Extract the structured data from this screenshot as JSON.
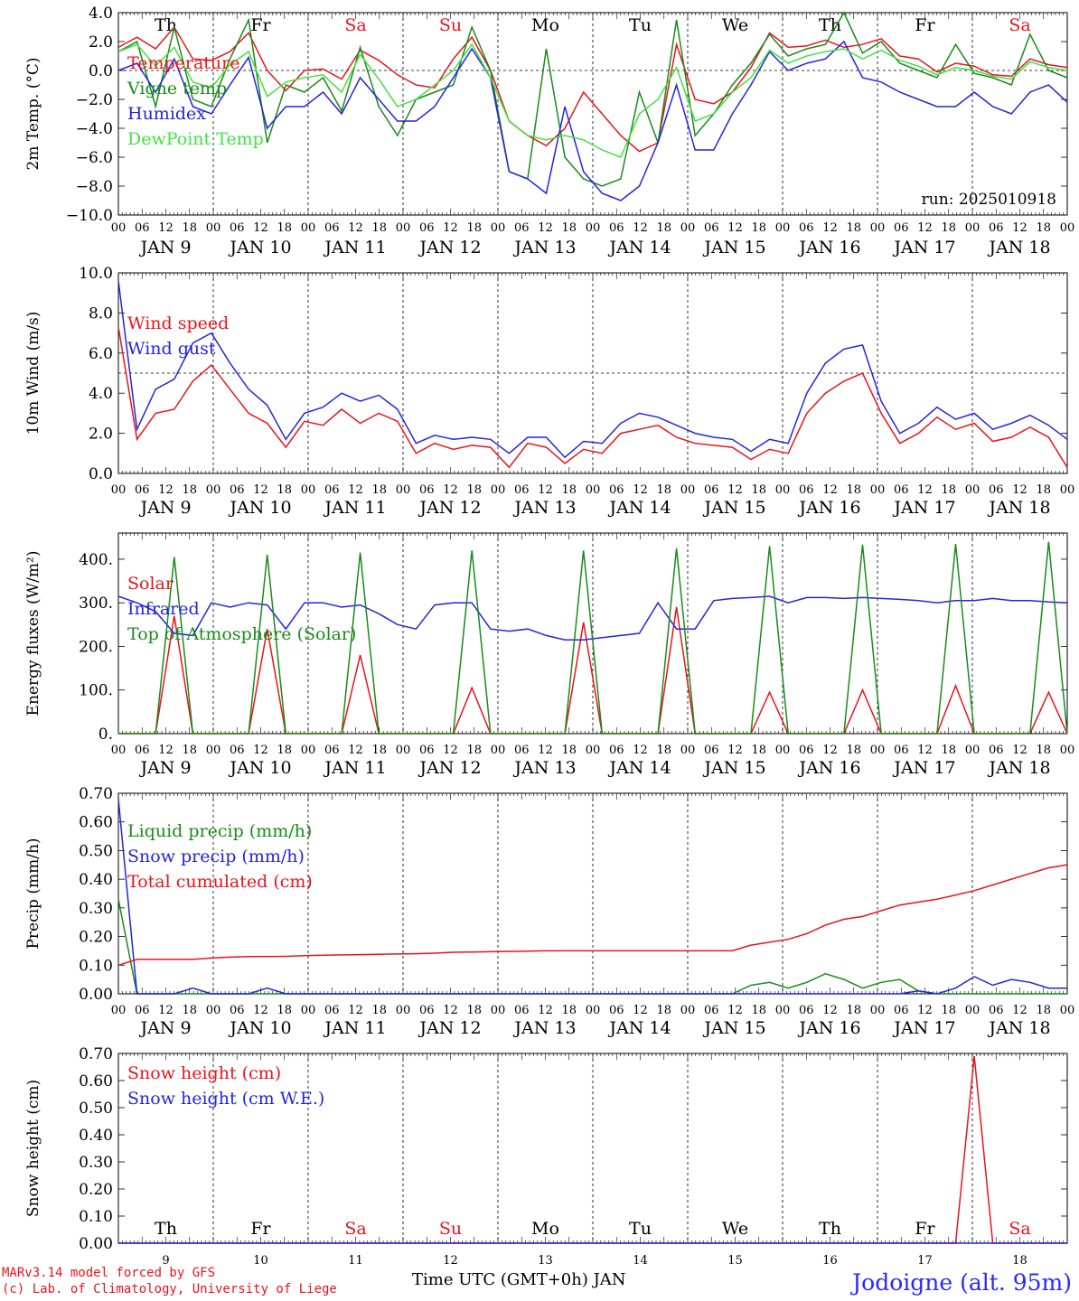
{
  "footer": {
    "model": "MARv3.14 model forced by GFS",
    "credit": "(c) Lab. of Climatology, University of Liege",
    "station": "Jodoigne (alt. 95m)",
    "xlabel": "Time UTC (GMT+0h) JAN"
  },
  "colors": {
    "red": "#e8141c",
    "green": "#1a8a1a",
    "blue": "#2424e0",
    "lightgreen": "#44e044",
    "weekend": "#e8141c",
    "axis": "#000000"
  },
  "days": {
    "weekday_labels": [
      "Th",
      "Fr",
      "Sa",
      "Su",
      "Mo",
      "Tu",
      "We",
      "Th",
      "Fr",
      "Sa"
    ],
    "weekday_labels_bottom": [
      "Th",
      "Fr",
      "Sa",
      "Su",
      "Mo",
      "Tu",
      "We",
      "Th",
      "Fr",
      "Sa"
    ],
    "weekend_flags": [
      false,
      false,
      true,
      true,
      false,
      false,
      false,
      false,
      false,
      true
    ],
    "date_labels": [
      "JAN  9",
      "JAN 10",
      "JAN 11",
      "JAN 12",
      "JAN 13",
      "JAN 14",
      "JAN 15",
      "JAN 16",
      "JAN 17",
      "JAN 18"
    ],
    "day_numbers": [
      "9",
      "10",
      "11",
      "12",
      "13",
      "14",
      "15",
      "16",
      "17",
      "18"
    ],
    "hour_ticks": [
      "00",
      "06",
      "12",
      "18"
    ]
  },
  "chart_data": [
    {
      "type": "line",
      "ylabel": "2m Temp. (°C)",
      "ylim": [
        -10,
        4
      ],
      "yticks": [
        "4.0",
        "2.0",
        "0.0",
        "−2.0",
        "−4.0",
        "−6.0",
        "−8.0",
        "−10.0"
      ],
      "yvals": [
        4,
        2,
        0,
        -2,
        -4,
        -6,
        -8,
        -10
      ],
      "refline": 0,
      "annotation": "run: 2025010918",
      "x_hours_per_point": 6,
      "series": [
        {
          "name": "Temperature",
          "color": "red",
          "values": [
            1.6,
            2.3,
            1.5,
            3.0,
            0.8,
            0.7,
            1.3,
            2.6,
            0.0,
            -1.4,
            0.0,
            0.1,
            -0.6,
            1.4,
            0.7,
            -0.3,
            -1.0,
            -1.2,
            0.8,
            2.3,
            0.0,
            -3.5,
            -4.5,
            -5.2,
            -4.0,
            -1.5,
            -3.0,
            -4.5,
            -5.6,
            -5.0,
            1.8,
            -2.0,
            -2.3,
            -1.5,
            0.2,
            2.6,
            1.6,
            1.7,
            2.1,
            1.6,
            1.8,
            2.2,
            1.0,
            0.8,
            -0.1,
            0.5,
            0.3,
            -0.3,
            -0.4,
            0.8,
            0.4,
            0.2
          ]
        },
        {
          "name": "Vigne temp",
          "color": "green",
          "values": [
            1.3,
            2.0,
            -2.5,
            3.0,
            -2.0,
            -2.5,
            0.8,
            3.5,
            -5.0,
            -1.0,
            -1.5,
            -0.5,
            -2.8,
            1.6,
            -2.5,
            -4.5,
            -2.0,
            -1.5,
            -1.0,
            3.0,
            0.0,
            -7.0,
            -7.5,
            1.5,
            -6.0,
            -7.5,
            -8.0,
            -7.5,
            -1.5,
            -5.0,
            3.5,
            -4.5,
            -3.0,
            -1.0,
            0.5,
            2.5,
            1.0,
            1.5,
            1.8,
            4.0,
            1.2,
            2.0,
            0.5,
            0.0,
            -0.5,
            1.8,
            -0.2,
            -0.5,
            -1.0,
            2.5,
            0.0,
            -0.5
          ]
        },
        {
          "name": "Humidex",
          "color": "blue",
          "values": [
            0.0,
            0.5,
            -1.5,
            0.8,
            -2.5,
            -3.0,
            -1.0,
            0.9,
            -4.0,
            -2.5,
            -2.5,
            -1.5,
            -3.0,
            -0.5,
            -2.0,
            -3.5,
            -3.5,
            -2.5,
            -0.5,
            1.5,
            -0.5,
            -7.0,
            -7.5,
            -8.5,
            -2.5,
            -7.0,
            -8.5,
            -9.0,
            -8.0,
            -5.0,
            -1.0,
            -5.5,
            -5.5,
            -3.0,
            -1.0,
            1.3,
            0.0,
            0.5,
            0.8,
            2.0,
            -0.5,
            -0.8,
            -1.5,
            -2.0,
            -2.5,
            -2.5,
            -1.5,
            -2.5,
            -3.0,
            -1.5,
            -1.0,
            -2.2
          ]
        },
        {
          "name": "DewPoint Temp",
          "color": "lightgreen",
          "values": [
            1.3,
            1.8,
            0.3,
            1.6,
            -0.8,
            -1.2,
            0.4,
            1.3,
            -1.8,
            -0.8,
            -0.5,
            -0.3,
            -1.5,
            1.1,
            -0.6,
            -2.5,
            -2.0,
            -1.0,
            0.0,
            1.8,
            -0.5,
            -3.5,
            -4.5,
            -4.8,
            -4.5,
            -4.8,
            -5.5,
            -6.0,
            -3.0,
            -2.0,
            0.2,
            -3.5,
            -3.0,
            -1.5,
            -0.5,
            1.4,
            0.5,
            1.0,
            1.3,
            1.5,
            0.8,
            1.4,
            0.7,
            0.3,
            -0.3,
            0.2,
            0.0,
            -0.4,
            -0.6,
            0.6,
            0.2,
            0.0
          ]
        }
      ],
      "legend_position": "top-left"
    },
    {
      "type": "line",
      "ylabel": "10m Wind (m/s)",
      "ylim": [
        0,
        10
      ],
      "yticks": [
        "10.0",
        "8.0",
        "6.0",
        "4.0",
        "2.0",
        "0.0"
      ],
      "yvals": [
        10,
        8,
        6,
        4,
        2,
        0
      ],
      "refline": 5,
      "series": [
        {
          "name": "Wind speed",
          "color": "red",
          "values": [
            7.3,
            1.7,
            3.0,
            3.2,
            4.6,
            5.4,
            4.2,
            3.0,
            2.5,
            1.3,
            2.6,
            2.4,
            3.2,
            2.5,
            3.0,
            2.6,
            1.0,
            1.5,
            1.2,
            1.4,
            1.3,
            0.3,
            1.5,
            1.3,
            0.5,
            1.2,
            1.0,
            2.0,
            2.2,
            2.4,
            1.8,
            1.5,
            1.4,
            1.3,
            0.7,
            1.2,
            1.0,
            3.0,
            4.0,
            4.6,
            5.0,
            3.0,
            1.5,
            2.0,
            2.8,
            2.2,
            2.5,
            1.6,
            1.8,
            2.3,
            1.8,
            0.3
          ]
        },
        {
          "name": "Wind gust",
          "color": "blue",
          "values": [
            9.6,
            2.2,
            4.2,
            4.7,
            6.5,
            7.0,
            5.5,
            4.2,
            3.4,
            1.7,
            3.0,
            3.3,
            4.0,
            3.6,
            3.9,
            3.2,
            1.5,
            1.9,
            1.7,
            1.8,
            1.7,
            1.0,
            1.8,
            1.8,
            0.8,
            1.6,
            1.5,
            2.5,
            3.0,
            2.8,
            2.4,
            2.0,
            1.8,
            1.7,
            1.1,
            1.7,
            1.5,
            4.0,
            5.5,
            6.2,
            6.4,
            3.6,
            2.0,
            2.5,
            3.3,
            2.7,
            3.0,
            2.2,
            2.5,
            2.9,
            2.4,
            1.7
          ]
        }
      ],
      "legend_position": "top-left"
    },
    {
      "type": "line",
      "ylabel": "Energy fluxes (W/m²)",
      "ylim": [
        0,
        460
      ],
      "yticks": [
        "400.",
        "300.",
        "200.",
        "100.",
        "0."
      ],
      "yvals": [
        400,
        300,
        200,
        100,
        0
      ],
      "series": [
        {
          "name": "Solar",
          "color": "red",
          "values": [
            0,
            0,
            0,
            270,
            0,
            0,
            0,
            0,
            240,
            0,
            0,
            0,
            0,
            180,
            0,
            0,
            0,
            0,
            0,
            105,
            0,
            0,
            0,
            0,
            0,
            255,
            0,
            0,
            0,
            0,
            290,
            0,
            0,
            0,
            0,
            95,
            0,
            0,
            0,
            0,
            100,
            0,
            0,
            0,
            0,
            110,
            0,
            0,
            0,
            0,
            95,
            0
          ]
        },
        {
          "name": "Infrared",
          "color": "blue",
          "values": [
            315,
            300,
            280,
            230,
            225,
            300,
            290,
            300,
            295,
            240,
            300,
            300,
            290,
            295,
            275,
            250,
            240,
            295,
            300,
            300,
            240,
            235,
            240,
            225,
            215,
            215,
            220,
            225,
            230,
            300,
            240,
            240,
            305,
            310,
            312,
            315,
            300,
            312,
            312,
            310,
            312,
            310,
            308,
            305,
            300,
            305,
            305,
            310,
            305,
            305,
            302,
            300
          ]
        },
        {
          "name": "Top of Atmosphere (Solar)",
          "color": "green",
          "values": [
            0,
            0,
            0,
            405,
            0,
            0,
            0,
            0,
            410,
            0,
            0,
            0,
            0,
            415,
            0,
            0,
            0,
            0,
            0,
            420,
            0,
            0,
            0,
            0,
            0,
            420,
            0,
            0,
            0,
            0,
            425,
            0,
            0,
            0,
            0,
            430,
            0,
            0,
            0,
            0,
            433,
            0,
            0,
            0,
            0,
            435,
            0,
            0,
            0,
            0,
            440,
            0
          ]
        }
      ],
      "legend_position": "top-left"
    },
    {
      "type": "line",
      "ylabel": "Precip (mm/h)",
      "ylim": [
        0,
        0.7
      ],
      "yticks": [
        "0.70",
        "0.60",
        "0.50",
        "0.40",
        "0.30",
        "0.20",
        "0.10",
        "0.00"
      ],
      "yvals": [
        0.7,
        0.6,
        0.5,
        0.4,
        0.3,
        0.2,
        0.1,
        0
      ],
      "series": [
        {
          "name": "Liquid precip (mm/h)",
          "color": "green",
          "values": [
            0.33,
            0.0,
            0.0,
            0.0,
            0.0,
            0.0,
            0.0,
            0.0,
            0.0,
            0.0,
            0.0,
            0.0,
            0.0,
            0.0,
            0.0,
            0.0,
            0.0,
            0.0,
            0.0,
            0.0,
            0.0,
            0.0,
            0.0,
            0.0,
            0.0,
            0.0,
            0.0,
            0.0,
            0.0,
            0.0,
            0.0,
            0.0,
            0.0,
            0.0,
            0.03,
            0.04,
            0.02,
            0.04,
            0.07,
            0.05,
            0.02,
            0.04,
            0.05,
            0.01,
            0.0,
            0.0,
            0.0,
            0.0,
            0.0,
            0.0,
            0.0,
            0.0
          ]
        },
        {
          "name": "Snow precip (mm/h)",
          "color": "blue",
          "values": [
            0.68,
            0.0,
            0.0,
            0.0,
            0.02,
            0.0,
            0.0,
            0.0,
            0.02,
            0.0,
            0.0,
            0.0,
            0.0,
            0.0,
            0.0,
            0.0,
            0.0,
            0.0,
            0.0,
            0.0,
            0.0,
            0.0,
            0.0,
            0.0,
            0.0,
            0.0,
            0.0,
            0.0,
            0.0,
            0.0,
            0.0,
            0.0,
            0.0,
            0.0,
            0.0,
            0.0,
            0.0,
            0.0,
            0.0,
            0.0,
            0.0,
            0.0,
            0.0,
            0.01,
            0.0,
            0.02,
            0.06,
            0.03,
            0.05,
            0.04,
            0.02,
            0.02
          ]
        },
        {
          "name": "Total cumulated (cm)",
          "color": "red",
          "values": [
            0.1,
            0.12,
            0.12,
            0.12,
            0.12,
            0.125,
            0.128,
            0.13,
            0.13,
            0.131,
            0.133,
            0.135,
            0.136,
            0.137,
            0.138,
            0.139,
            0.14,
            0.142,
            0.145,
            0.146,
            0.147,
            0.148,
            0.149,
            0.15,
            0.15,
            0.15,
            0.15,
            0.15,
            0.15,
            0.15,
            0.15,
            0.15,
            0.15,
            0.15,
            0.17,
            0.18,
            0.19,
            0.21,
            0.24,
            0.26,
            0.27,
            0.29,
            0.31,
            0.32,
            0.33,
            0.345,
            0.36,
            0.38,
            0.4,
            0.42,
            0.44,
            0.45
          ]
        }
      ],
      "legend_position": "top-left"
    },
    {
      "type": "line",
      "ylabel": "Snow height (cm)",
      "ylim": [
        0,
        0.7
      ],
      "yticks": [
        "0.70",
        "0.60",
        "0.50",
        "0.40",
        "0.30",
        "0.20",
        "0.10",
        "0.00"
      ],
      "yvals": [
        0.7,
        0.6,
        0.5,
        0.4,
        0.3,
        0.2,
        0.1,
        0
      ],
      "series": [
        {
          "name": "Snow height (cm)",
          "color": "red",
          "values": [
            0,
            0,
            0,
            0,
            0,
            0,
            0,
            0,
            0,
            0,
            0,
            0,
            0,
            0,
            0,
            0,
            0,
            0,
            0,
            0,
            0,
            0,
            0,
            0,
            0,
            0,
            0,
            0,
            0,
            0,
            0,
            0,
            0,
            0,
            0,
            0,
            0,
            0,
            0,
            0,
            0,
            0,
            0,
            0,
            0,
            0,
            0.69,
            0,
            0,
            0,
            0,
            0
          ]
        },
        {
          "name": "Snow height (cm W.E.)",
          "color": "blue",
          "values": [
            0,
            0,
            0,
            0,
            0,
            0,
            0,
            0,
            0,
            0,
            0,
            0,
            0,
            0,
            0,
            0,
            0,
            0,
            0,
            0,
            0,
            0,
            0,
            0,
            0,
            0,
            0,
            0,
            0,
            0,
            0,
            0,
            0,
            0,
            0,
            0,
            0,
            0,
            0,
            0,
            0,
            0,
            0,
            0,
            0,
            0,
            0,
            0,
            0,
            0,
            0,
            0
          ]
        }
      ],
      "legend_position": "top-left"
    }
  ]
}
